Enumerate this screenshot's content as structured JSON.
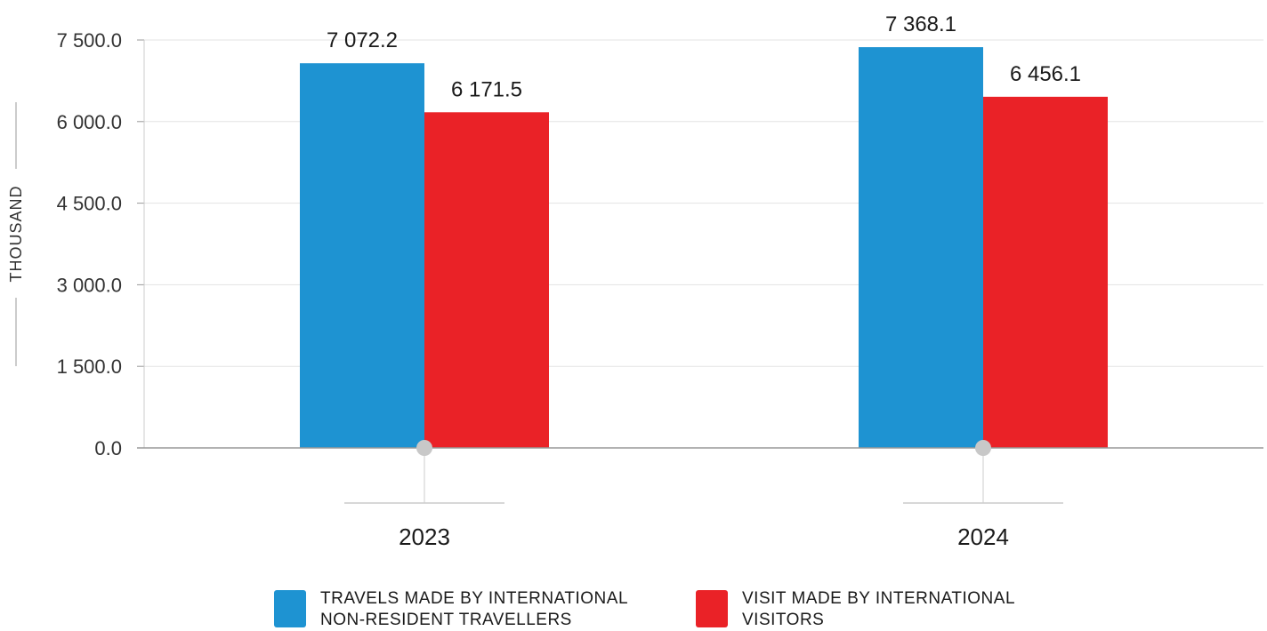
{
  "chart_data": {
    "type": "bar",
    "categories": [
      "2023",
      "2024"
    ],
    "series": [
      {
        "name": "TRAVELS MADE BY INTERNATIONAL\nNON-RESIDENT TRAVELLERS",
        "color": "#1e93d2",
        "values": [
          7072.2,
          7368.1
        ],
        "labels": [
          "7 072.2",
          "7 368.1"
        ]
      },
      {
        "name": "VISIT MADE BY INTERNATIONAL\nVISITORS",
        "color": "#ea2227",
        "values": [
          6171.5,
          6456.1
        ],
        "labels": [
          "6 171.5",
          "6 456.1"
        ]
      }
    ],
    "ylabel": "THOUSAND",
    "ylim": [
      0,
      7500
    ],
    "yticks": [
      0,
      1500,
      3000,
      4500,
      6000,
      7500
    ],
    "ytick_labels": [
      "0.0",
      "1 500.0",
      "3 000.0",
      "4 500.0",
      "6 000.0",
      "7 500.0"
    ],
    "grid": true,
    "legend_position": "bottom"
  }
}
